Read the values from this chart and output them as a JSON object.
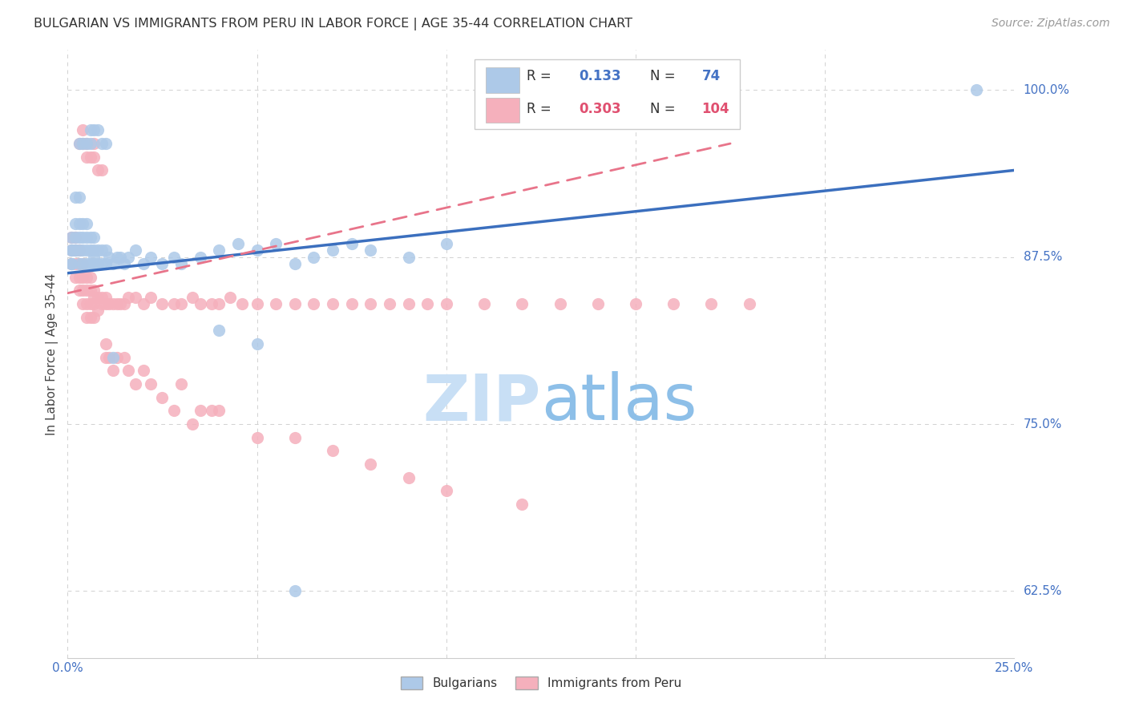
{
  "title": "BULGARIAN VS IMMIGRANTS FROM PERU IN LABOR FORCE | AGE 35-44 CORRELATION CHART",
  "source": "Source: ZipAtlas.com",
  "ylabel": "In Labor Force | Age 35-44",
  "xlim": [
    0.0,
    0.25
  ],
  "ylim": [
    0.575,
    1.03
  ],
  "yticks": [
    0.625,
    0.75,
    0.875,
    1.0
  ],
  "ytick_labels": [
    "62.5%",
    "75.0%",
    "87.5%",
    "100.0%"
  ],
  "xticks": [
    0.0,
    0.05,
    0.1,
    0.15,
    0.2,
    0.25
  ],
  "xtick_labels": [
    "0.0%",
    "",
    "",
    "",
    "",
    "25.0%"
  ],
  "blue_R": 0.133,
  "blue_N": 74,
  "pink_R": 0.303,
  "pink_N": 104,
  "blue_color": "#adc9e8",
  "pink_color": "#f5b0bc",
  "blue_line_color": "#3b6fbe",
  "pink_line_color": "#e8748a",
  "pink_line_dash_color": "#e8a0ac",
  "watermark_zip": "ZIP",
  "watermark_atlas": "atlas",
  "watermark_color": "#d5e8f8",
  "blue_scatter_x": [
    0.001,
    0.001,
    0.001,
    0.001,
    0.001,
    0.002,
    0.002,
    0.002,
    0.002,
    0.002,
    0.003,
    0.003,
    0.003,
    0.003,
    0.003,
    0.004,
    0.004,
    0.004,
    0.004,
    0.005,
    0.005,
    0.005,
    0.005,
    0.006,
    0.006,
    0.006,
    0.007,
    0.007,
    0.007,
    0.007,
    0.008,
    0.008,
    0.009,
    0.009,
    0.01,
    0.01,
    0.011,
    0.012,
    0.013,
    0.014,
    0.015,
    0.016,
    0.018,
    0.02,
    0.022,
    0.025,
    0.028,
    0.03,
    0.035,
    0.04,
    0.045,
    0.05,
    0.055,
    0.06,
    0.065,
    0.07,
    0.075,
    0.08,
    0.09,
    0.1,
    0.003,
    0.004,
    0.005,
    0.006,
    0.006,
    0.007,
    0.008,
    0.009,
    0.01,
    0.012,
    0.04,
    0.05,
    0.24,
    0.06
  ],
  "blue_scatter_y": [
    0.87,
    0.87,
    0.88,
    0.88,
    0.89,
    0.88,
    0.88,
    0.89,
    0.9,
    0.92,
    0.87,
    0.88,
    0.89,
    0.9,
    0.92,
    0.87,
    0.88,
    0.89,
    0.9,
    0.87,
    0.88,
    0.89,
    0.9,
    0.87,
    0.88,
    0.89,
    0.87,
    0.875,
    0.88,
    0.89,
    0.87,
    0.88,
    0.87,
    0.88,
    0.87,
    0.88,
    0.875,
    0.87,
    0.875,
    0.875,
    0.87,
    0.875,
    0.88,
    0.87,
    0.875,
    0.87,
    0.875,
    0.87,
    0.875,
    0.88,
    0.885,
    0.88,
    0.885,
    0.87,
    0.875,
    0.88,
    0.885,
    0.88,
    0.875,
    0.885,
    0.96,
    0.96,
    0.96,
    0.96,
    0.97,
    0.97,
    0.97,
    0.96,
    0.96,
    0.8,
    0.82,
    0.81,
    1.0,
    0.625
  ],
  "pink_scatter_x": [
    0.001,
    0.001,
    0.001,
    0.002,
    0.002,
    0.002,
    0.002,
    0.003,
    0.003,
    0.003,
    0.003,
    0.004,
    0.004,
    0.004,
    0.004,
    0.005,
    0.005,
    0.005,
    0.005,
    0.006,
    0.006,
    0.006,
    0.006,
    0.007,
    0.007,
    0.007,
    0.007,
    0.008,
    0.008,
    0.009,
    0.009,
    0.01,
    0.01,
    0.011,
    0.012,
    0.013,
    0.014,
    0.015,
    0.016,
    0.018,
    0.02,
    0.022,
    0.025,
    0.028,
    0.03,
    0.033,
    0.035,
    0.038,
    0.04,
    0.043,
    0.046,
    0.05,
    0.055,
    0.06,
    0.065,
    0.07,
    0.075,
    0.08,
    0.085,
    0.09,
    0.095,
    0.1,
    0.11,
    0.12,
    0.13,
    0.14,
    0.15,
    0.16,
    0.17,
    0.18,
    0.003,
    0.004,
    0.004,
    0.005,
    0.005,
    0.006,
    0.007,
    0.007,
    0.008,
    0.009,
    0.01,
    0.01,
    0.011,
    0.012,
    0.013,
    0.015,
    0.016,
    0.018,
    0.02,
    0.022,
    0.025,
    0.028,
    0.03,
    0.033,
    0.035,
    0.038,
    0.04,
    0.05,
    0.06,
    0.07,
    0.08,
    0.09,
    0.1,
    0.12
  ],
  "pink_scatter_y": [
    0.88,
    0.89,
    0.87,
    0.88,
    0.89,
    0.87,
    0.86,
    0.87,
    0.88,
    0.86,
    0.85,
    0.87,
    0.86,
    0.85,
    0.84,
    0.86,
    0.85,
    0.84,
    0.83,
    0.86,
    0.85,
    0.84,
    0.83,
    0.85,
    0.845,
    0.84,
    0.83,
    0.845,
    0.835,
    0.845,
    0.84,
    0.84,
    0.845,
    0.84,
    0.84,
    0.84,
    0.84,
    0.84,
    0.845,
    0.845,
    0.84,
    0.845,
    0.84,
    0.84,
    0.84,
    0.845,
    0.84,
    0.84,
    0.84,
    0.845,
    0.84,
    0.84,
    0.84,
    0.84,
    0.84,
    0.84,
    0.84,
    0.84,
    0.84,
    0.84,
    0.84,
    0.84,
    0.84,
    0.84,
    0.84,
    0.84,
    0.84,
    0.84,
    0.84,
    0.84,
    0.96,
    0.96,
    0.97,
    0.96,
    0.95,
    0.95,
    0.96,
    0.95,
    0.94,
    0.94,
    0.8,
    0.81,
    0.8,
    0.79,
    0.8,
    0.8,
    0.79,
    0.78,
    0.79,
    0.78,
    0.77,
    0.76,
    0.78,
    0.75,
    0.76,
    0.76,
    0.76,
    0.74,
    0.74,
    0.73,
    0.72,
    0.71,
    0.7,
    0.69
  ],
  "blue_line_x": [
    0.0,
    0.25
  ],
  "blue_line_y": [
    0.863,
    0.94
  ],
  "pink_line_x": [
    0.0,
    0.175
  ],
  "pink_line_y": [
    0.848,
    0.96
  ]
}
